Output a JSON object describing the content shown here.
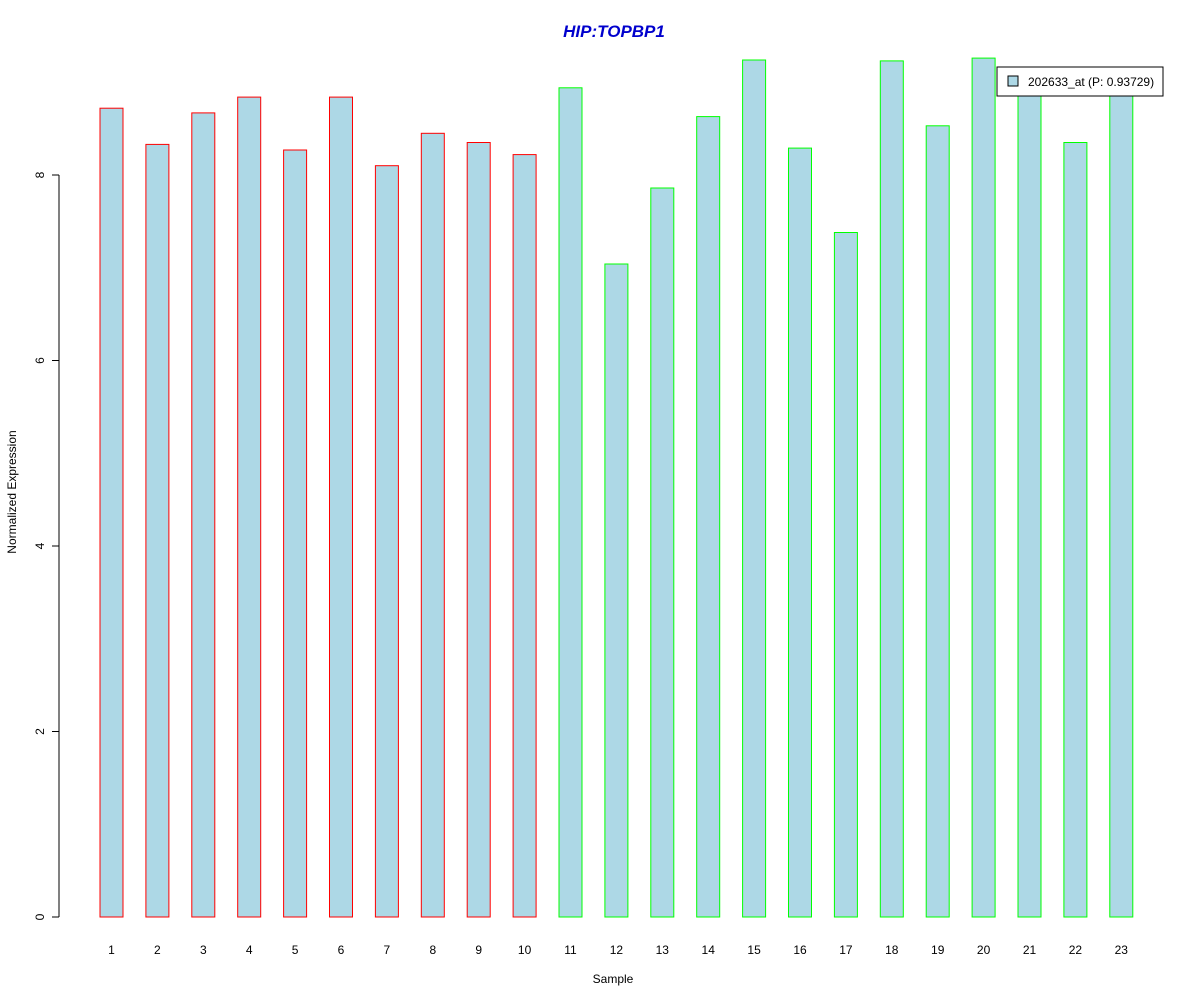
{
  "chart_data": {
    "type": "bar",
    "title": "HIP:TOPBP1",
    "xlabel": "Sample",
    "ylabel": "Normalized Expression",
    "categories": [
      "1",
      "2",
      "3",
      "4",
      "5",
      "6",
      "7",
      "8",
      "9",
      "10",
      "11",
      "12",
      "13",
      "14",
      "15",
      "16",
      "17",
      "18",
      "19",
      "20",
      "21",
      "22",
      "23"
    ],
    "series": [
      {
        "name": "202633_at (P: 0.93729)",
        "values": [
          8.72,
          8.33,
          8.67,
          8.84,
          8.27,
          8.84,
          8.1,
          8.45,
          8.35,
          8.22,
          8.94,
          7.04,
          7.86,
          8.63,
          9.24,
          8.29,
          7.38,
          9.23,
          8.53,
          9.26,
          8.94,
          8.35,
          8.94
        ]
      }
    ],
    "group_outline_colors": [
      "#ff0000",
      "#ff0000",
      "#ff0000",
      "#ff0000",
      "#ff0000",
      "#ff0000",
      "#ff0000",
      "#ff0000",
      "#ff0000",
      "#ff0000",
      "#00ff00",
      "#00ff00",
      "#00ff00",
      "#00ff00",
      "#00ff00",
      "#00ff00",
      "#00ff00",
      "#00ff00",
      "#00ff00",
      "#00ff00",
      "#00ff00",
      "#00ff00",
      "#00ff00"
    ],
    "yticks": [
      0,
      2,
      4,
      6,
      8
    ],
    "ylim": [
      0,
      9.5
    ],
    "grid": false,
    "legend_position": "top-right",
    "colors": {
      "bar_fill": "#add8e6",
      "title": "#0000cd"
    }
  }
}
